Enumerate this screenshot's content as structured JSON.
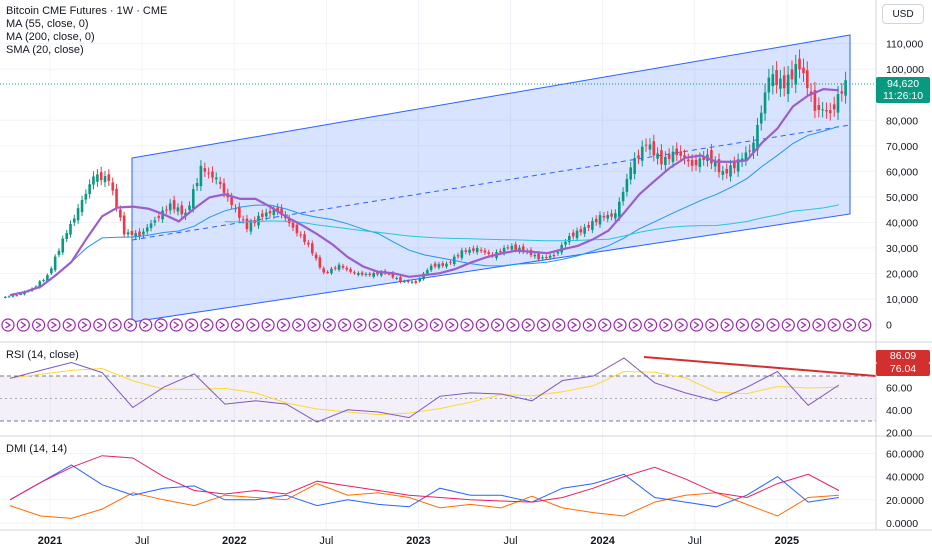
{
  "title": "Bitcoin CME Futures · 1W · CME",
  "currency_button": "USD",
  "price_axis_labels": [
    "110,000",
    "100,000",
    "80,000",
    "70,000",
    "60,000",
    "50,000",
    "40,000",
    "30,000",
    "20,000",
    "10,000",
    "0"
  ],
  "price_axis_values": [
    110000,
    100000,
    80000,
    70000,
    60000,
    50000,
    40000,
    30000,
    20000,
    10000,
    0
  ],
  "current_price": "94,620",
  "countdown": "11:26:10",
  "rsi_axis_labels": [
    "60.00",
    "40.00",
    "20.00"
  ],
  "rsi_axis_values": [
    60,
    40,
    20
  ],
  "rsi_tag_values": [
    "86.09",
    "76.04"
  ],
  "dmi_axis_labels": [
    "60.0000",
    "40.0000",
    "20.0000",
    "0.0000"
  ],
  "dmi_axis_values": [
    60,
    40,
    20,
    0
  ],
  "time_axis_labels": [
    "2021",
    "Jul",
    "2022",
    "Jul",
    "2023",
    "Jul",
    "2024",
    "Jul",
    "2025"
  ],
  "indicators": {
    "ma55": "MA (55, close, 0)",
    "ma200": "MA (200, close, 0)",
    "sma20": "SMA (20, close)",
    "rsi": "RSI (14, close)",
    "dmi": "DMI (14, 14)"
  },
  "colors": {
    "up": "#089981",
    "down": "#f23645",
    "channel": "#2962ff",
    "ma55": "#2196f3",
    "ma200": "#26c6da",
    "sma20": "#9c5ecb",
    "rsi": "#7e57c2",
    "rsi_ma": "#fdd835",
    "trendline": "#d32f2f",
    "di_plus": "#2962ff",
    "di_minus": "#ff6d00",
    "adx": "#e91e63",
    "marker": "#9c27b0"
  },
  "chart_data": [
    {
      "type": "candlestick",
      "title": "Bitcoin CME Futures · 1W · CME",
      "ylim": [
        0,
        114000
      ],
      "x": [
        "2020-10",
        "2020-11",
        "2020-12",
        "2021-01",
        "2021-02",
        "2021-03",
        "2021-04",
        "2021-05",
        "2021-06",
        "2021-07",
        "2021-08",
        "2021-09",
        "2021-10",
        "2021-11",
        "2021-12",
        "2022-01",
        "2022-02",
        "2022-03",
        "2022-04",
        "2022-05",
        "2022-06",
        "2022-07",
        "2022-08",
        "2022-09",
        "2022-10",
        "2022-11",
        "2022-12",
        "2023-01",
        "2023-02",
        "2023-03",
        "2023-04",
        "2023-05",
        "2023-06",
        "2023-07",
        "2023-08",
        "2023-09",
        "2023-10",
        "2023-11",
        "2023-12",
        "2024-01",
        "2024-02",
        "2024-03",
        "2024-04",
        "2024-05",
        "2024-06",
        "2024-07",
        "2024-08",
        "2024-09",
        "2024-10",
        "2024-11",
        "2024-12",
        "2025-01",
        "2025-02",
        "2025-03",
        "2025-04"
      ],
      "close": [
        11500,
        14000,
        19000,
        33000,
        45000,
        58000,
        57000,
        36000,
        35000,
        41000,
        47000,
        43000,
        61000,
        57000,
        47000,
        38000,
        43000,
        45000,
        38000,
        31000,
        20000,
        23000,
        20000,
        19500,
        20500,
        17000,
        16500,
        23000,
        23500,
        28500,
        29500,
        27000,
        30500,
        29200,
        26000,
        27000,
        34500,
        37500,
        42000,
        43000,
        61500,
        71000,
        64000,
        67500,
        62500,
        66000,
        59000,
        63500,
        70500,
        97000,
        94000,
        102000,
        85000,
        83000,
        94620
      ]
    },
    {
      "type": "line",
      "title": "RSI (14, close)",
      "ylim": [
        20,
        95
      ],
      "tag_values": [
        86.09,
        76.04
      ],
      "x": [
        "2020-10",
        "2020-12",
        "2021-02",
        "2021-04",
        "2021-06",
        "2021-08",
        "2021-10",
        "2021-12",
        "2022-02",
        "2022-04",
        "2022-06",
        "2022-08",
        "2022-10",
        "2022-12",
        "2023-02",
        "2023-04",
        "2023-06",
        "2023-08",
        "2023-10",
        "2023-12",
        "2024-02",
        "2024-04",
        "2024-06",
        "2024-08",
        "2024-10",
        "2024-12",
        "2025-02",
        "2025-04"
      ],
      "series": [
        {
          "name": "RSI",
          "values": [
            68,
            75,
            82,
            73,
            42,
            60,
            72,
            45,
            48,
            45,
            29,
            40,
            38,
            33,
            52,
            55,
            54,
            48,
            66,
            70,
            86,
            64,
            55,
            48,
            60,
            74,
            44,
            62
          ]
        }
      ]
    },
    {
      "type": "line",
      "title": "DMI (14, 14)",
      "ylim": [
        0,
        65
      ],
      "x": [
        "2020-10",
        "2020-12",
        "2021-02",
        "2021-04",
        "2021-06",
        "2021-08",
        "2021-10",
        "2021-12",
        "2022-02",
        "2022-04",
        "2022-06",
        "2022-08",
        "2022-10",
        "2022-12",
        "2023-02",
        "2023-04",
        "2023-06",
        "2023-08",
        "2023-10",
        "2023-12",
        "2024-02",
        "2024-04",
        "2024-06",
        "2024-08",
        "2024-10",
        "2024-12",
        "2025-02",
        "2025-04"
      ],
      "series": [
        {
          "values": [
            20,
            35,
            50,
            33,
            24,
            30,
            32,
            20,
            20,
            24,
            15,
            20,
            16,
            14,
            30,
            24,
            24,
            18,
            30,
            34,
            42,
            22,
            18,
            14,
            24,
            40,
            18,
            22
          ]
        },
        {
          "values": [
            15,
            6,
            4,
            12,
            26,
            20,
            15,
            24,
            22,
            20,
            34,
            24,
            26,
            22,
            13,
            16,
            13,
            23,
            13,
            9,
            6,
            18,
            24,
            26,
            16,
            6,
            22,
            24
          ]
        },
        {
          "values": [
            20,
            35,
            48,
            58,
            56,
            40,
            28,
            25,
            28,
            25,
            36,
            32,
            28,
            24,
            22,
            20,
            19,
            18,
            22,
            30,
            40,
            48,
            38,
            26,
            22,
            34,
            42,
            28
          ]
        }
      ]
    }
  ]
}
